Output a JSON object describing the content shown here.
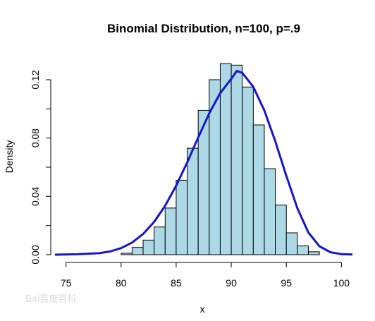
{
  "chart_data": {
    "type": "bar",
    "title": "Binomial Distribution, n=100, p=.9",
    "xlabel": "x",
    "ylabel": "Density",
    "xlim": [
      74,
      101
    ],
    "ylim": [
      0,
      0.135
    ],
    "x_ticks": [
      75,
      80,
      85,
      90,
      95,
      100
    ],
    "y_ticks": [
      0.0,
      0.04,
      0.08,
      0.12
    ],
    "y_tick_labels": [
      "0.00",
      "0.04",
      "0.08",
      "0.12"
    ],
    "bin_width": 1,
    "bins": [
      {
        "x0": 80,
        "value": 0.001
      },
      {
        "x0": 81,
        "value": 0.005
      },
      {
        "x0": 82,
        "value": 0.01
      },
      {
        "x0": 83,
        "value": 0.019
      },
      {
        "x0": 84,
        "value": 0.032
      },
      {
        "x0": 85,
        "value": 0.051
      },
      {
        "x0": 86,
        "value": 0.073
      },
      {
        "x0": 87,
        "value": 0.099
      },
      {
        "x0": 88,
        "value": 0.12
      },
      {
        "x0": 89,
        "value": 0.131
      },
      {
        "x0": 90,
        "value": 0.13
      },
      {
        "x0": 91,
        "value": 0.115
      },
      {
        "x0": 92,
        "value": 0.089
      },
      {
        "x0": 93,
        "value": 0.059
      },
      {
        "x0": 94,
        "value": 0.034
      },
      {
        "x0": 95,
        "value": 0.015
      },
      {
        "x0": 96,
        "value": 0.006
      },
      {
        "x0": 97,
        "value": 0.002
      }
    ],
    "curve": {
      "x": [
        74,
        76,
        78,
        79,
        80,
        81,
        82,
        83,
        84,
        85,
        86,
        87,
        88,
        89,
        90,
        90.5,
        91,
        92,
        93,
        94,
        95,
        96,
        97,
        98,
        99,
        100,
        101
      ],
      "y": [
        0.0,
        0.0003,
        0.001,
        0.0022,
        0.0045,
        0.0083,
        0.0142,
        0.0225,
        0.0336,
        0.0473,
        0.0633,
        0.0804,
        0.0969,
        0.1108,
        0.1206,
        0.126,
        0.1247,
        0.1151,
        0.0989,
        0.0777,
        0.0541,
        0.0318,
        0.0152,
        0.0058,
        0.0017,
        0.0004,
        0.0001
      ]
    },
    "colors": {
      "bar_fill": "#add8e6",
      "bar_stroke": "#000000",
      "curve": "#1515cc"
    },
    "grid": false,
    "watermark": "Bai百度百科"
  }
}
